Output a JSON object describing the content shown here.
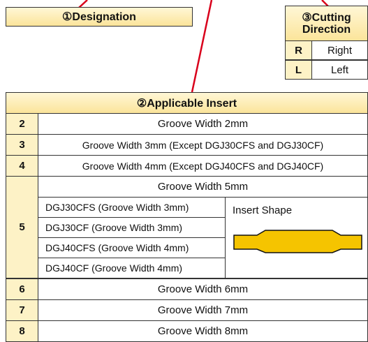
{
  "designation": {
    "title": "①Designation"
  },
  "cutting_direction": {
    "title": "③Cutting Direction",
    "rows": [
      [
        "R",
        "Right"
      ],
      [
        "L",
        "Left"
      ]
    ]
  },
  "insert_table": {
    "title": "②Applicable Insert",
    "rows": [
      [
        "2",
        "Groove Width 2mm"
      ],
      [
        "3",
        "Groove Width 3mm (Except DGJ30CFS and DGJ30CF)"
      ],
      [
        "4",
        "Groove Width 4mm (Except DGJ40CFS and DGJ40CF)"
      ],
      [
        "5",
        "Groove Width 5mm"
      ],
      [
        "6",
        "Groove Width 6mm"
      ],
      [
        "7",
        "Groove Width 7mm"
      ],
      [
        "8",
        "Groove Width 8mm"
      ]
    ],
    "groove5_models": [
      "DGJ30CFS (Groove Width 3mm)",
      "DGJ30CF (Groove Width 3mm)",
      "DGJ40CFS (Groove Width 4mm)",
      "DGJ40CF (Groove Width 4mm)"
    ],
    "insert_shape_label": "Insert Shape"
  }
}
